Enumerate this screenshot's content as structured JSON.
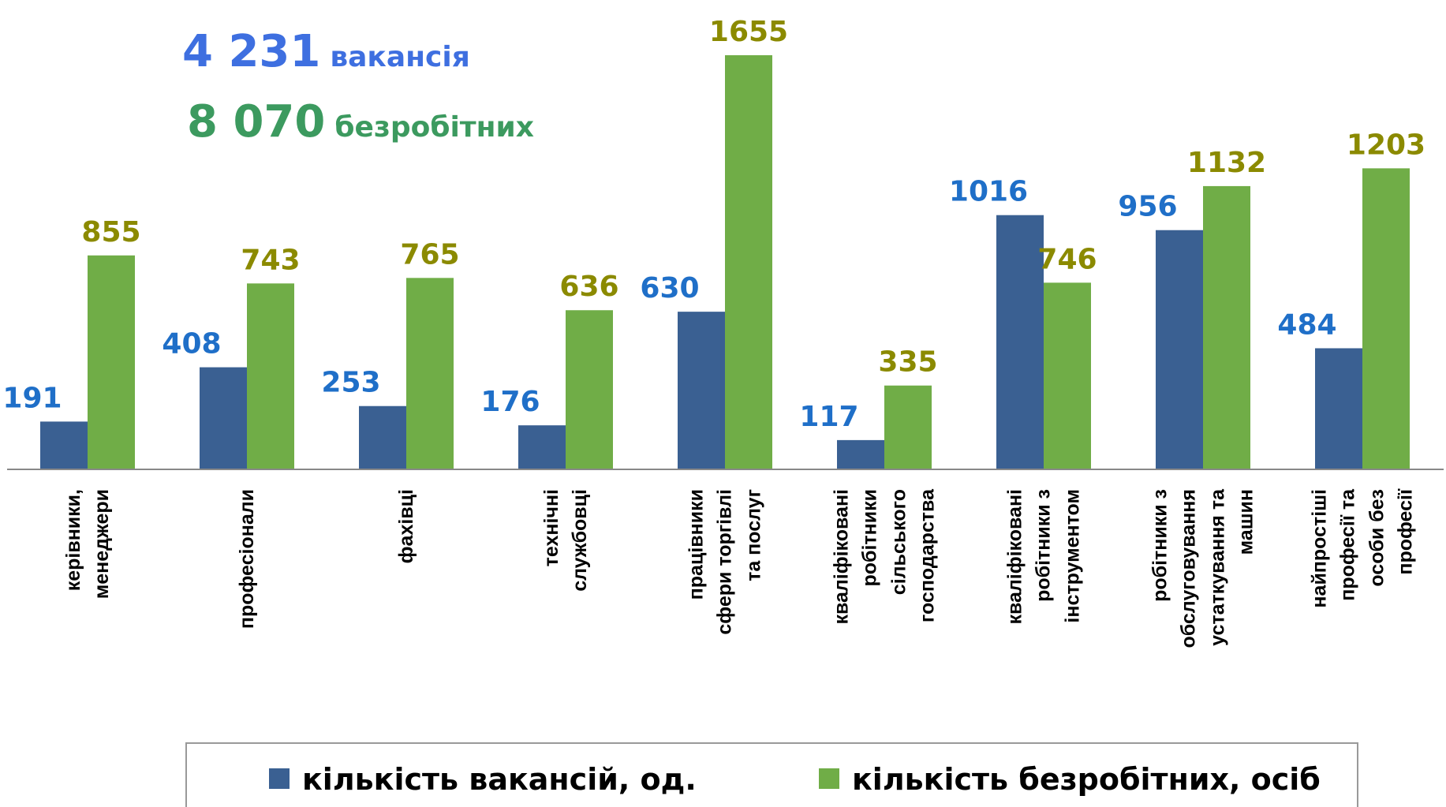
{
  "chart_data": {
    "type": "bar",
    "annotations": [
      {
        "number": "4 231",
        "text": "вакансія",
        "color": "#3e6fe0"
      },
      {
        "number": "8 070",
        "text": "безробітних",
        "color": "#3c9a5f"
      }
    ],
    "categories": [
      "керівники,\nменеджери",
      "професіонали",
      "фахівці",
      "технічні\nслужбовці",
      "працівники\nсфери торгівлі\nта послуг",
      "кваліфіковані\nробітники\nсільського\nгосподарства",
      "кваліфіковані\nробітники з\nінструментом",
      "робітники з\nобслуговування\nустаткування та\nмашин",
      "найпростіші\nпрофесії та\nособи без\nпрофесії"
    ],
    "series": [
      {
        "name": "кількість вакансій, од.",
        "color": "#3a6092",
        "label_color": "#1f6fc8",
        "values": [
          191,
          408,
          253,
          176,
          630,
          117,
          1016,
          956,
          484
        ]
      },
      {
        "name": "кількість безробітних, осіб",
        "color": "#70ad47",
        "label_color": "#8b8a00",
        "values": [
          855,
          743,
          765,
          636,
          1655,
          335,
          746,
          1132,
          1203
        ]
      }
    ],
    "ylim": [
      0,
      1655
    ],
    "legend": "bottom"
  }
}
